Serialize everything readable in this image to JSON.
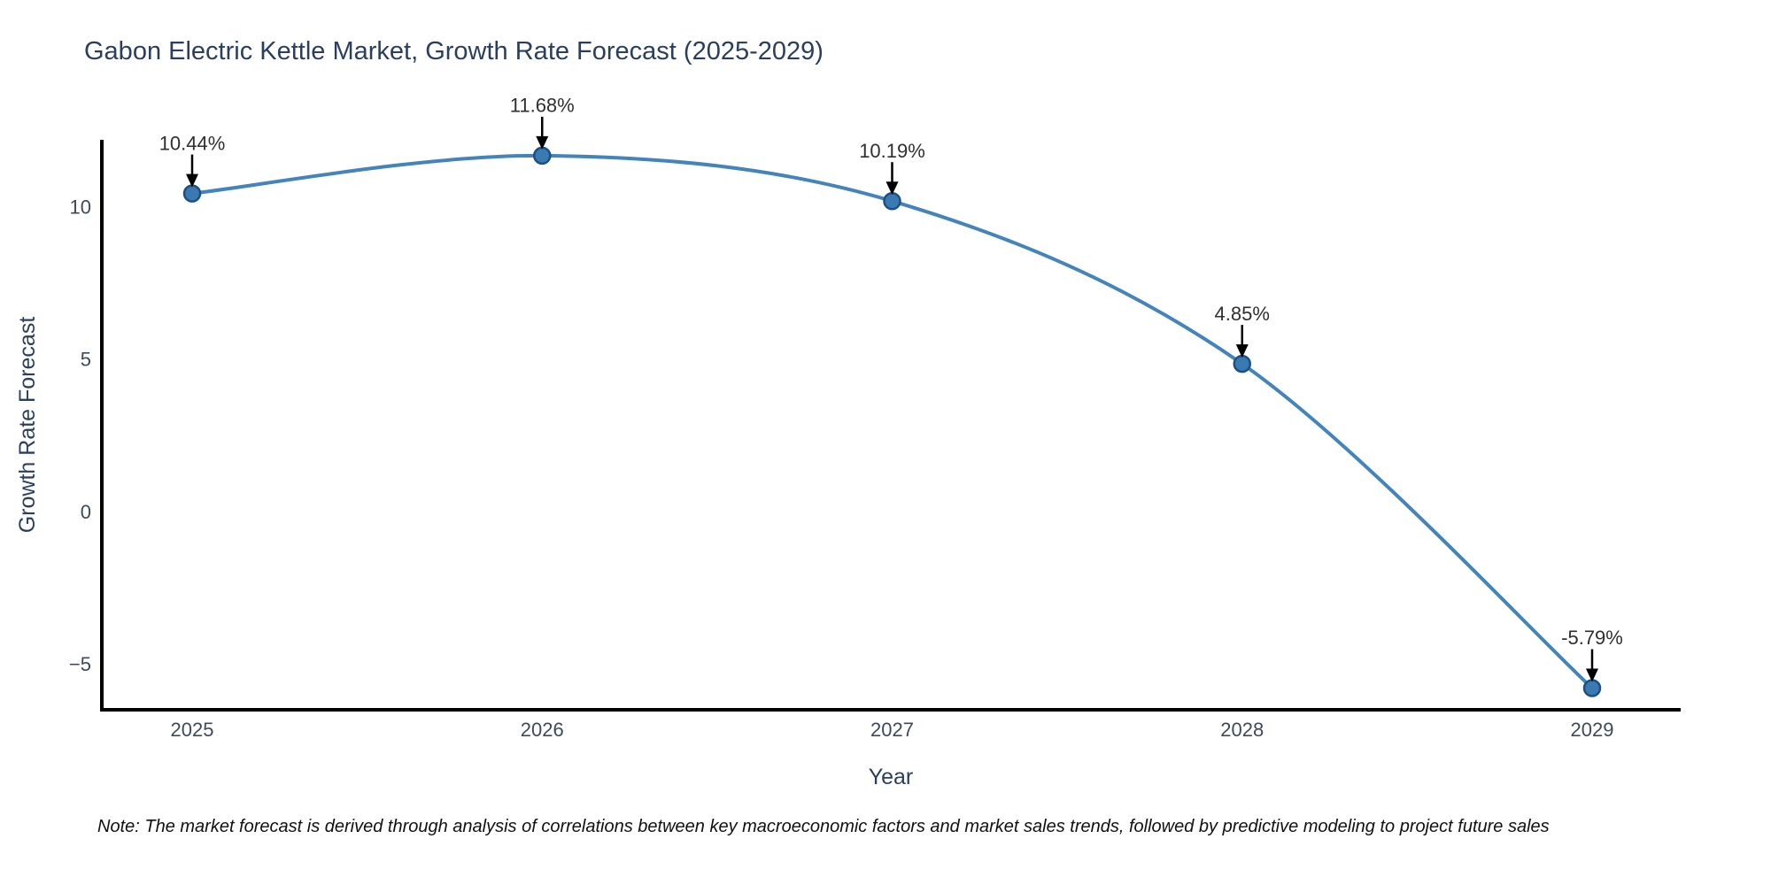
{
  "chart_data": {
    "type": "line",
    "title": "Gabon Electric Kettle Market, Growth Rate Forecast (2025-2029)",
    "xlabel": "Year",
    "ylabel": "Growth Rate Forecast",
    "categories": [
      "2025",
      "2026",
      "2027",
      "2028",
      "2029"
    ],
    "series": [
      {
        "name": "Growth Rate Forecast",
        "values": [
          10.44,
          11.68,
          10.19,
          4.85,
          -5.79
        ],
        "point_labels": [
          "10.44%",
          "11.68%",
          "10.19%",
          "4.85%",
          "-5.79%"
        ]
      }
    ],
    "yticks": [
      {
        "value": -5,
        "label": "−5"
      },
      {
        "value": 0,
        "label": "0"
      },
      {
        "value": 5,
        "label": "5"
      },
      {
        "value": 10,
        "label": "10"
      }
    ],
    "ylim": [
      -6.5,
      12.2
    ],
    "grid": false,
    "legend": "none",
    "line_shape": "spline",
    "note": "Note: The market forecast is derived through analysis of correlations between key macroeconomic factors and market sales trends, followed by predictive modeling to project future sales",
    "colors": {
      "line": "#4384bb",
      "marker_fill": "#3a7ab3",
      "marker_edge": "#1d5082",
      "axis": "#000000",
      "arrow": "#000000",
      "title_text": "#2a3f5f",
      "tick_text": "#3d4a5c",
      "annotation_text": "#2f2f2f",
      "note_text": "#111111"
    }
  }
}
